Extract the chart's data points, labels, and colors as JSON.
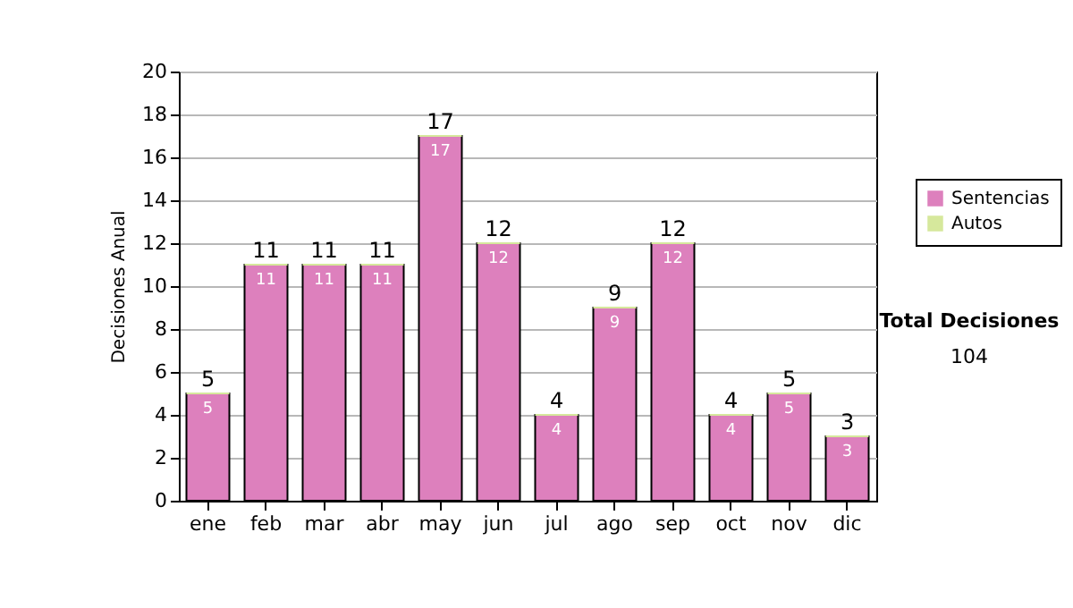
{
  "chart_data": {
    "type": "bar",
    "ylabel": "Decisiones Anual",
    "categories": [
      "ene",
      "feb",
      "mar",
      "abr",
      "may",
      "jun",
      "jul",
      "ago",
      "sep",
      "oct",
      "nov",
      "dic"
    ],
    "series": [
      {
        "name": "Sentencias",
        "color": "#dd80bd",
        "values": [
          5,
          11,
          11,
          11,
          17,
          12,
          4,
          9,
          12,
          4,
          5,
          3
        ],
        "value_labels": [
          "5",
          "11",
          "11",
          "11",
          "17",
          "12",
          "4",
          "9",
          "12",
          "4",
          "5",
          "3"
        ]
      },
      {
        "name": "Autos",
        "color": "#d6e89c",
        "values": [
          0,
          0,
          0,
          0,
          0,
          0,
          0,
          0,
          0,
          0,
          0,
          0
        ]
      }
    ],
    "stacked": true,
    "totals": [
      "5",
      "11",
      "11",
      "11",
      "17",
      "12",
      "4",
      "9",
      "12",
      "4",
      "5",
      "3"
    ],
    "ylim": [
      0,
      20
    ],
    "yticks": [
      0,
      2,
      4,
      6,
      8,
      10,
      12,
      14,
      16,
      18,
      20
    ],
    "grid": "y",
    "legend": "right",
    "annotations": [
      "Total Decisiones",
      "104"
    ]
  }
}
